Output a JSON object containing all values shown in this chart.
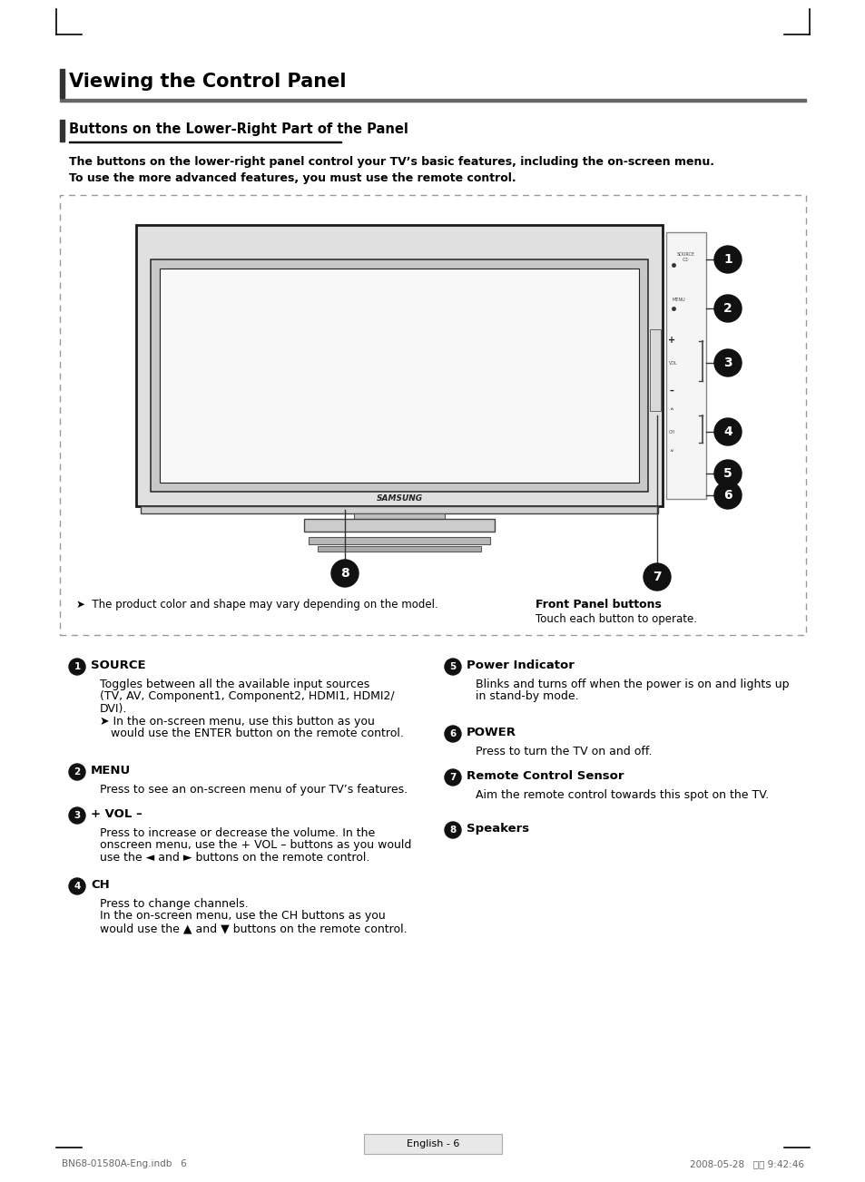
{
  "page_title": "Viewing the Control Panel",
  "section_title": "Buttons on the Lower-Right Part of the Panel",
  "intro_text": "The buttons on the lower-right panel control your TV’s basic features, including the on-screen menu.\nTo use the more advanced features, you must use the remote control.",
  "note_text": "➤  The product color and shape may vary depending on the model.",
  "front_panel_label": "Front Panel buttons",
  "front_panel_sub": "Touch each button to operate.",
  "items_left": [
    {
      "num": "1",
      "title": "SOURCE",
      "lines": [
        {
          "text": "Toggles between all the available input sources",
          "bold": false,
          "indent": 1
        },
        {
          "text": "(TV, AV, Component1, Component2, HDMI1, HDMI2/",
          "bold": false,
          "indent": 1
        },
        {
          "text": "DVI).",
          "bold": false,
          "indent": 1
        },
        {
          "text": "➤ In the on-screen menu, use this button as you",
          "bold": false,
          "indent": 1
        },
        {
          "text": "   would use the ",
          "bold": false,
          "indent": 2,
          "bold_word": "ENTER",
          "bold_suffix": " button on the remote control."
        }
      ]
    },
    {
      "num": "2",
      "title": "MENU",
      "lines": [
        {
          "text": "Press to see an on-screen menu of your TV’s features.",
          "bold": false,
          "indent": 1
        }
      ]
    },
    {
      "num": "3",
      "title": "+ VOL –",
      "lines": [
        {
          "text": "Press to increase or decrease the volume. In the",
          "bold": false,
          "indent": 1
        },
        {
          "text": "onscreen menu, use the + VOL – buttons as you would",
          "bold": false,
          "indent": 1
        },
        {
          "text": "use the ◄ and ► buttons on the remote control.",
          "bold": false,
          "indent": 1
        }
      ]
    },
    {
      "num": "4",
      "title": "CH",
      "lines": [
        {
          "text": "Press to change channels.",
          "bold": false,
          "indent": 1
        },
        {
          "text": "In the on-screen menu, use the CH buttons as you",
          "bold": false,
          "indent": 1
        },
        {
          "text": "would use the ▲ and ▼ buttons on the remote control.",
          "bold": false,
          "indent": 1
        }
      ]
    }
  ],
  "items_right": [
    {
      "num": "5",
      "title": "Power Indicator",
      "lines": [
        {
          "text": "Blinks and turns off when the power is on and lights up",
          "bold": false,
          "indent": 1
        },
        {
          "text": "in stand-by mode.",
          "bold": false,
          "indent": 1
        }
      ]
    },
    {
      "num": "6",
      "title": "POWER",
      "lines": [
        {
          "text": "Press to turn the TV on and off.",
          "bold": false,
          "indent": 1
        }
      ]
    },
    {
      "num": "7",
      "title": "Remote Control Sensor",
      "lines": [
        {
          "text": "Aim the remote control towards this spot on the TV.",
          "bold": false,
          "indent": 1
        }
      ]
    },
    {
      "num": "8",
      "title": "Speakers",
      "lines": []
    }
  ],
  "footer_left": "BN68-01580A-Eng.indb   6",
  "footer_right": "2008-05-28   오후 9:42:46",
  "page_num": "English - 6",
  "bg_color": "#ffffff",
  "text_color": "#000000",
  "title_bar_color": "#555555",
  "dashed_border_color": "#999999"
}
